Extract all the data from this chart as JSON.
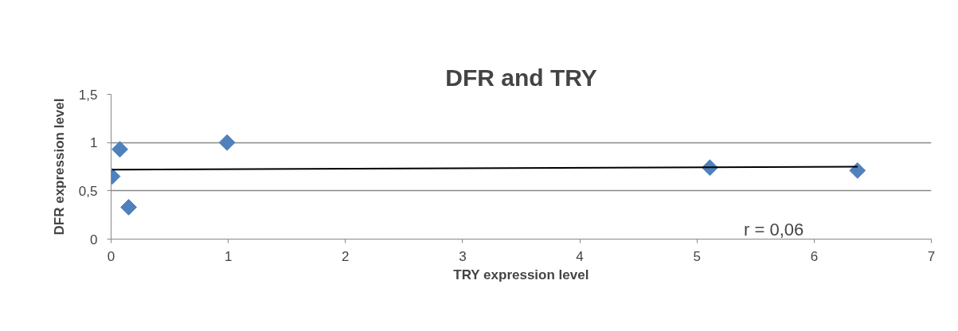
{
  "chart_data": {
    "type": "scatter",
    "title": "DFR and TRY",
    "xlabel": "TRY expression level",
    "ylabel": "DFR expression level",
    "series": [
      {
        "color": "#4f81bd",
        "marker": "diamond",
        "x": [
          0.01,
          0.075,
          0.15,
          0.99,
          5.11,
          6.37
        ],
        "values": [
          0.65,
          0.93,
          0.33,
          1.0,
          0.74,
          0.71
        ]
      },
      {
        "type": "line",
        "color": "#000000",
        "marker": "none",
        "x": [
          0.01,
          6.37
        ],
        "values": [
          0.72,
          0.75
        ]
      }
    ],
    "xlim": [
      0,
      7
    ],
    "xticks": [
      0,
      1,
      2,
      3,
      4,
      5,
      6,
      7
    ],
    "ylim": [
      0,
      1.5
    ],
    "yticks": [
      0,
      {
        "value": 0.5,
        "label": "0,5"
      },
      1,
      {
        "value": 1.5,
        "label": "1,5"
      }
    ],
    "grid": "y",
    "annotations": [
      "r = 0,06"
    ]
  }
}
